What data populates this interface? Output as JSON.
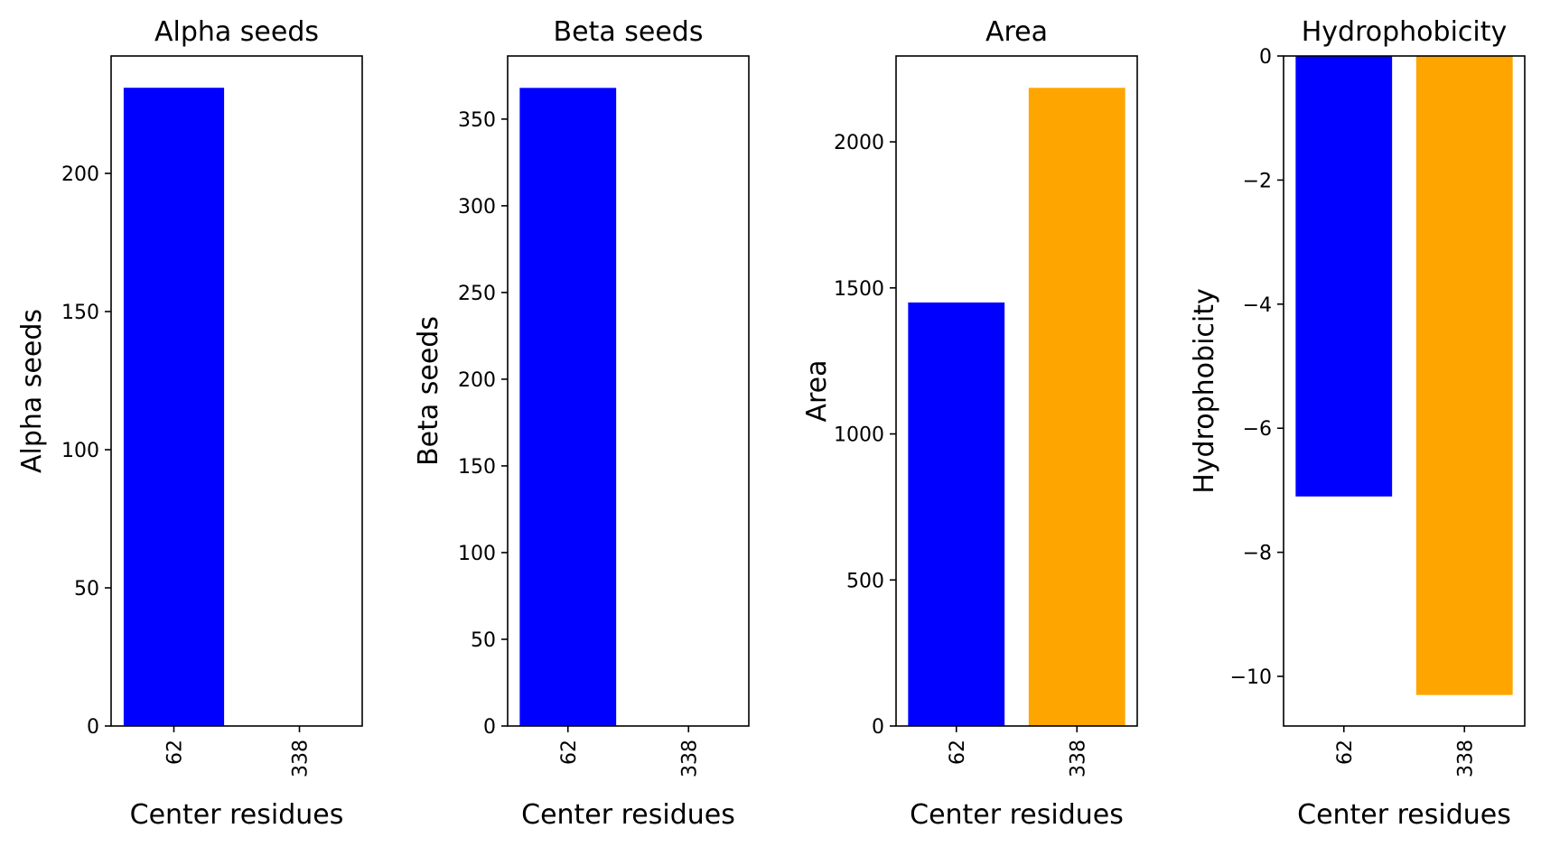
{
  "chart_data": [
    {
      "type": "bar",
      "title": "Alpha seeds",
      "xlabel": "Center residues",
      "ylabel": "Alpha seeds",
      "categories": [
        "62",
        "338"
      ],
      "values": [
        231,
        0
      ],
      "colors": [
        "#0000ff",
        "#ffa500"
      ],
      "ylim": [
        0,
        242.5
      ],
      "yticks": [
        0,
        50,
        100,
        150,
        200
      ],
      "ytick_labels": [
        "0",
        "50",
        "100",
        "150",
        "200"
      ],
      "grid": false
    },
    {
      "type": "bar",
      "title": "Beta seeds",
      "xlabel": "Center residues",
      "ylabel": "Beta seeds",
      "categories": [
        "62",
        "338"
      ],
      "values": [
        368,
        0
      ],
      "colors": [
        "#0000ff",
        "#ffa500"
      ],
      "ylim": [
        0,
        386.4
      ],
      "yticks": [
        0,
        50,
        100,
        150,
        200,
        250,
        300,
        350
      ],
      "ytick_labels": [
        "0",
        "50",
        "100",
        "150",
        "200",
        "250",
        "300",
        "350"
      ],
      "grid": false
    },
    {
      "type": "bar",
      "title": "Area",
      "xlabel": "Center residues",
      "ylabel": "Area",
      "categories": [
        "62",
        "338"
      ],
      "values": [
        1450,
        2185
      ],
      "colors": [
        "#0000ff",
        "#ffa500"
      ],
      "ylim": [
        0,
        2294
      ],
      "yticks": [
        0,
        500,
        1000,
        1500,
        2000
      ],
      "ytick_labels": [
        "0",
        "500",
        "1000",
        "1500",
        "2000"
      ],
      "grid": false
    },
    {
      "type": "bar",
      "title": "Hydrophobicity",
      "xlabel": "Center residues",
      "ylabel": "Hydrophobicity",
      "categories": [
        "62",
        "338"
      ],
      "values": [
        -7.1,
        -10.3
      ],
      "colors": [
        "#0000ff",
        "#ffa500"
      ],
      "ylim": [
        -10.8,
        0
      ],
      "yticks": [
        0,
        -2,
        -4,
        -6,
        -8,
        -10
      ],
      "ytick_labels": [
        "0",
        "−2",
        "−4",
        "−6",
        "−8",
        "−10"
      ],
      "grid": false
    }
  ]
}
